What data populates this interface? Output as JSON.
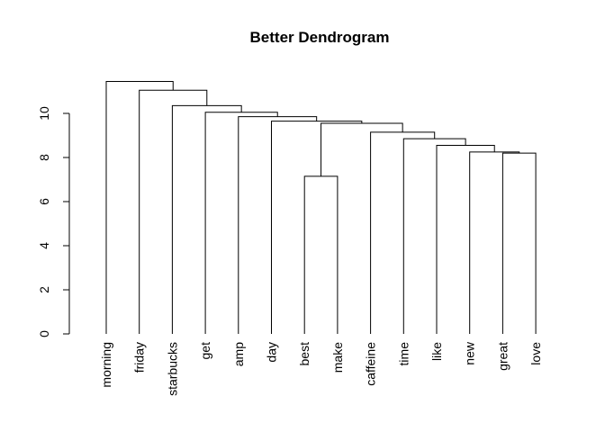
{
  "chart_data": {
    "type": "dendrogram",
    "title": "Better Dendrogram",
    "xlabel": "",
    "ylabel": "",
    "ylim": [
      0,
      11.5
    ],
    "yticks": [
      0,
      2,
      4,
      6,
      8,
      10
    ],
    "ytick_labels": [
      "0",
      "2",
      "4",
      "6",
      "8",
      "10"
    ],
    "leaves": [
      "morning",
      "friday",
      "starbucks",
      "get",
      "amp",
      "day",
      "best",
      "make",
      "caffeine",
      "time",
      "like",
      "new",
      "great",
      "love"
    ],
    "merges": [
      {
        "a": "best",
        "b": "make",
        "height": 7.15
      },
      {
        "a": "love",
        "b": "great",
        "height": 8.2
      },
      {
        "a": "new",
        "b": [
          "great",
          "love"
        ],
        "height": 8.25
      },
      {
        "a": "like",
        "b": [
          "new",
          "great",
          "love"
        ],
        "height": 8.55
      },
      {
        "a": "time",
        "b": [
          "like",
          "new",
          "great",
          "love"
        ],
        "height": 8.85
      },
      {
        "a": "caffeine",
        "b": [
          "time",
          "like",
          "new",
          "great",
          "love"
        ],
        "height": 9.15
      },
      {
        "a": [
          "best",
          "make"
        ],
        "b": [
          "caffeine",
          "time",
          "like",
          "new",
          "great",
          "love"
        ],
        "height": 9.55
      },
      {
        "a": "day",
        "b": [
          "best",
          "make",
          "caffeine",
          "time",
          "like",
          "new",
          "great",
          "love"
        ],
        "height": 9.65
      },
      {
        "a": "amp",
        "b": [
          "day",
          "best",
          "make",
          "caffeine",
          "time",
          "like",
          "new",
          "great",
          "love"
        ],
        "height": 9.85
      },
      {
        "a": "get",
        "b": [
          "amp",
          "day",
          "best",
          "make",
          "caffeine",
          "time",
          "like",
          "new",
          "great",
          "love"
        ],
        "height": 10.05
      },
      {
        "a": "starbucks",
        "b": [
          "get",
          "amp",
          "day",
          "best",
          "make",
          "caffeine",
          "time",
          "like",
          "new",
          "great",
          "love"
        ],
        "height": 10.35
      },
      {
        "a": "friday",
        "b": [
          "starbucks",
          "get",
          "amp",
          "day",
          "best",
          "make",
          "caffeine",
          "time",
          "like",
          "new",
          "great",
          "love"
        ],
        "height": 11.05
      },
      {
        "a": "morning",
        "b": [
          "friday",
          "starbucks",
          "get",
          "amp",
          "day",
          "best",
          "make",
          "caffeine",
          "time",
          "like",
          "new",
          "great",
          "love"
        ],
        "height": 11.45
      }
    ]
  }
}
